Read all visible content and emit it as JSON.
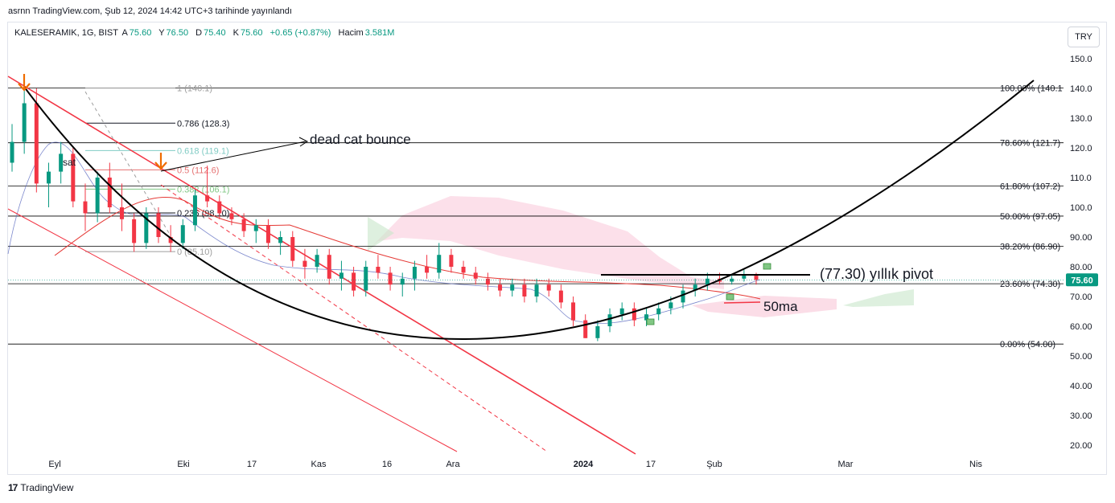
{
  "published_text": "asrnn TradingView.com, Şub 12, 2024 14:42 UTC+3 tarihinde yayınlandı",
  "legend": {
    "symbol": "KALESERAMIK, 1G, BIST",
    "o_label": "A",
    "o_value": "75.60",
    "h_label": "Y",
    "h_value": "76.50",
    "l_label": "D",
    "l_value": "75.40",
    "c_label": "K",
    "c_value": "75.60",
    "change": "+0.65 (+0.87%)",
    "volume_label": "Hacim",
    "volume_value": "3.581M"
  },
  "currency_button": "TRY",
  "footer_brand": "TradingView",
  "colors": {
    "up": "#089981",
    "down": "#f23645",
    "fib_line": "#000000",
    "bullish_cloud": "#c8e6c9",
    "bearish_cloud": "#f8bbd0",
    "price_badge": "#089981",
    "trend_red": "#f23645"
  },
  "chart_data": {
    "type": "candlestick",
    "y_ticks": [
      "150.0",
      "140.0",
      "130.0",
      "120.0",
      "110.0",
      "100.0",
      "90.00",
      "80.00",
      "70.00",
      "60.00",
      "50.00",
      "40.00",
      "30.00",
      "20.00"
    ],
    "y_tick_values": [
      150,
      140,
      130,
      120,
      110,
      100,
      90,
      80,
      70,
      60,
      50,
      40,
      30,
      20
    ],
    "x_ticks": [
      "Eyl",
      "Eki",
      "17",
      "Kas",
      "16",
      "Ara",
      "2024",
      "17",
      "Şub",
      "Mar",
      "Nis"
    ],
    "ylim": [
      15,
      160
    ],
    "last_price": "75.60",
    "fib_right": [
      {
        "label": "100.00% (140.1",
        "value": 140.1
      },
      {
        "label": "78.60% (121.7)",
        "value": 121.7
      },
      {
        "label": "61.80% (107.2)",
        "value": 107.2
      },
      {
        "label": "50.00% (97.05)",
        "value": 97.05
      },
      {
        "label": "38.20% (86.90)",
        "value": 86.9
      },
      {
        "label": "23.60% (74.30)",
        "value": 74.3
      },
      {
        "label": "0.00% (54.00)",
        "value": 54.0
      }
    ],
    "fib_left": [
      {
        "label": "1 (140.1)",
        "value": 140.1,
        "color": "#9e9e9e"
      },
      {
        "label": "0.786 (128.3)",
        "value": 128.3,
        "color": "#131722"
      },
      {
        "label": "0.618 (119.1)",
        "value": 119.1,
        "color": "#80cbc4"
      },
      {
        "label": "0.5 (112.6)",
        "value": 112.6,
        "color": "#e57373"
      },
      {
        "label": "0.382 (106.1)",
        "value": 106.1,
        "color": "#81c784"
      },
      {
        "label": "0.236 (98.10)",
        "value": 98.1,
        "color": "#131722"
      },
      {
        "label": "0 (85.10)",
        "value": 85.1,
        "color": "#9e9e9e"
      }
    ],
    "annotations": {
      "sat": "sat",
      "dead_cat": "dead cat bounce",
      "pivot": "(77.30) yıllık pivot",
      "pivot_value": 77.3,
      "ma50": "50ma"
    },
    "candles": [
      [
        115,
        128,
        112,
        122
      ],
      [
        122,
        140,
        118,
        135
      ],
      [
        135,
        140,
        105,
        108
      ],
      [
        108,
        115,
        100,
        112
      ],
      [
        112,
        122,
        108,
        118
      ],
      [
        118,
        120,
        100,
        102
      ],
      [
        102,
        108,
        92,
        98
      ],
      [
        98,
        112,
        95,
        110
      ],
      [
        110,
        115,
        98,
        100
      ],
      [
        100,
        108,
        92,
        96
      ],
      [
        96,
        98,
        85,
        88
      ],
      [
        88,
        100,
        86,
        98
      ],
      [
        98,
        100,
        88,
        90
      ],
      [
        90,
        94,
        85,
        88
      ],
      [
        88,
        96,
        86,
        94
      ],
      [
        94,
        106,
        92,
        104
      ],
      [
        104,
        114,
        100,
        102
      ],
      [
        102,
        104,
        96,
        98
      ],
      [
        98,
        100,
        94,
        96
      ],
      [
        96,
        98,
        90,
        92
      ],
      [
        92,
        96,
        88,
        94
      ],
      [
        94,
        96,
        86,
        88
      ],
      [
        88,
        92,
        84,
        90
      ],
      [
        90,
        92,
        80,
        82
      ],
      [
        82,
        86,
        76,
        80
      ],
      [
        80,
        86,
        78,
        84
      ],
      [
        84,
        86,
        74,
        76
      ],
      [
        76,
        82,
        72,
        78
      ],
      [
        78,
        80,
        70,
        72
      ],
      [
        72,
        82,
        70,
        80
      ],
      [
        80,
        84,
        76,
        78
      ],
      [
        78,
        80,
        72,
        74
      ],
      [
        74,
        78,
        70,
        76
      ],
      [
        76,
        82,
        72,
        80
      ],
      [
        80,
        84,
        76,
        78
      ],
      [
        78,
        88,
        76,
        84
      ],
      [
        84,
        86,
        78,
        80
      ],
      [
        80,
        82,
        76,
        78
      ],
      [
        78,
        80,
        74,
        76
      ],
      [
        76,
        78,
        72,
        74
      ],
      [
        74,
        76,
        70,
        72
      ],
      [
        72,
        76,
        70,
        74
      ],
      [
        74,
        76,
        68,
        70
      ],
      [
        70,
        76,
        68,
        74
      ],
      [
        74,
        76,
        70,
        72
      ],
      [
        72,
        74,
        66,
        68
      ],
      [
        68,
        70,
        60,
        62
      ],
      [
        62,
        64,
        56,
        56
      ],
      [
        56,
        62,
        55,
        60
      ],
      [
        60,
        66,
        58,
        64
      ],
      [
        64,
        68,
        62,
        66
      ],
      [
        66,
        68,
        60,
        62
      ],
      [
        62,
        66,
        60,
        64
      ],
      [
        64,
        68,
        62,
        66
      ],
      [
        66,
        70,
        64,
        68
      ],
      [
        68,
        74,
        66,
        72
      ],
      [
        72,
        76,
        70,
        74
      ],
      [
        74,
        78,
        72,
        76
      ],
      [
        76,
        78,
        74,
        75
      ],
      [
        75,
        77,
        74,
        76
      ],
      [
        76,
        79,
        75,
        77
      ],
      [
        77,
        78,
        74,
        75.6
      ]
    ]
  }
}
